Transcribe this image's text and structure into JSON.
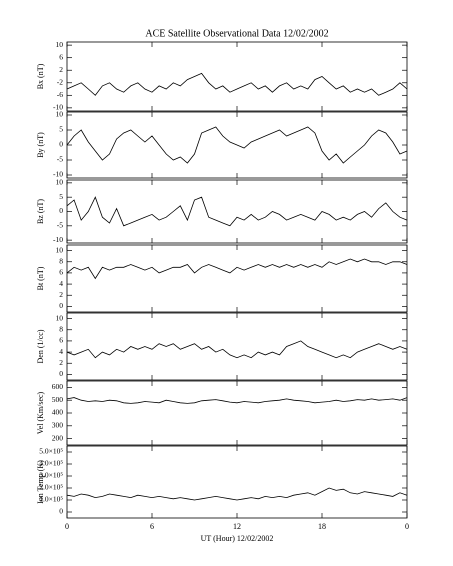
{
  "chart_data": [
    {
      "type": "line",
      "title": "ACE Satellite Observational Data   12/02/2002",
      "ylabel": "Bx (nT)",
      "xlim": [
        0,
        24
      ],
      "xticks": [
        0,
        6,
        12,
        18,
        24
      ],
      "ylim": [
        -11,
        11
      ],
      "yticks": [
        -10,
        -6,
        -2,
        2,
        6,
        10
      ],
      "color": "#000000",
      "x": [
        0,
        0.5,
        1,
        1.5,
        2,
        2.5,
        3,
        3.5,
        4,
        4.5,
        5,
        5.5,
        6,
        6.5,
        7,
        7.5,
        8,
        8.5,
        9,
        9.5,
        10,
        10.5,
        11,
        11.5,
        12,
        12.5,
        13,
        13.5,
        14,
        14.5,
        15,
        15.5,
        16,
        16.5,
        17,
        17.5,
        18,
        18.5,
        19,
        19.5,
        20,
        20.5,
        21,
        21.5,
        22,
        22.5,
        23,
        23.5,
        24
      ],
      "values": [
        -4,
        -3,
        -2,
        -4,
        -6,
        -3,
        -2,
        -4,
        -5,
        -3,
        -2,
        -4,
        -5,
        -3,
        -4,
        -2,
        -3,
        -1,
        0,
        1,
        -2,
        -4,
        -3,
        -5,
        -4,
        -3,
        -2,
        -4,
        -3,
        -5,
        -3,
        -2,
        -4,
        -3,
        -4,
        -1,
        0,
        -2,
        -4,
        -3,
        -5,
        -4,
        -5,
        -4,
        -6,
        -5,
        -4,
        -2,
        -4
      ]
    },
    {
      "type": "line",
      "ylabel": "By (nT)",
      "xlim": [
        0,
        24
      ],
      "xticks": [
        0,
        6,
        12,
        18,
        24
      ],
      "ylim": [
        -11,
        11
      ],
      "yticks": [
        -10,
        -5,
        0,
        5,
        10
      ],
      "color": "#000000",
      "x": [
        0,
        0.5,
        1,
        1.5,
        2,
        2.5,
        3,
        3.5,
        4,
        4.5,
        5,
        5.5,
        6,
        6.5,
        7,
        7.5,
        8,
        8.5,
        9,
        9.5,
        10,
        10.5,
        11,
        11.5,
        12,
        12.5,
        13,
        13.5,
        14,
        14.5,
        15,
        15.5,
        16,
        16.5,
        17,
        17.5,
        18,
        18.5,
        19,
        19.5,
        20,
        20.5,
        21,
        21.5,
        22,
        22.5,
        23,
        23.5,
        24
      ],
      "values": [
        0,
        3,
        5,
        1,
        -2,
        -5,
        -3,
        2,
        4,
        5,
        3,
        1,
        3,
        0,
        -3,
        -5,
        -4,
        -6,
        -3,
        4,
        5,
        6,
        3,
        1,
        0,
        -1,
        1,
        2,
        3,
        4,
        5,
        3,
        4,
        5,
        6,
        4,
        -2,
        -5,
        -3,
        -6,
        -4,
        -2,
        0,
        3,
        5,
        4,
        1,
        -3,
        -2
      ]
    },
    {
      "type": "line",
      "ylabel": "Bz (nT)",
      "xlim": [
        0,
        24
      ],
      "xticks": [
        0,
        6,
        12,
        18,
        24
      ],
      "ylim": [
        -11,
        11
      ],
      "yticks": [
        -10,
        -5,
        0,
        5,
        10
      ],
      "color": "#000000",
      "x": [
        0,
        0.5,
        1,
        1.5,
        2,
        2.5,
        3,
        3.5,
        4,
        4.5,
        5,
        5.5,
        6,
        6.5,
        7,
        7.5,
        8,
        8.5,
        9,
        9.5,
        10,
        10.5,
        11,
        11.5,
        12,
        12.5,
        13,
        13.5,
        14,
        14.5,
        15,
        15.5,
        16,
        16.5,
        17,
        17.5,
        18,
        18.5,
        19,
        19.5,
        20,
        20.5,
        21,
        21.5,
        22,
        22.5,
        23,
        23.5,
        24
      ],
      "values": [
        2,
        4,
        -3,
        0,
        5,
        -2,
        -4,
        1,
        -5,
        -4,
        -3,
        -2,
        -1,
        -3,
        -2,
        0,
        2,
        -3,
        4,
        5,
        -2,
        -3,
        -4,
        -5,
        -2,
        -3,
        -1,
        -3,
        -2,
        0,
        -1,
        -3,
        -2,
        -1,
        -2,
        -3,
        0,
        -1,
        -3,
        -2,
        -3,
        -1,
        0,
        -2,
        1,
        3,
        0,
        -2,
        -3
      ]
    },
    {
      "type": "line",
      "ylabel": "Bt (nT)",
      "xlim": [
        0,
        24
      ],
      "xticks": [
        0,
        6,
        12,
        18,
        24
      ],
      "ylim": [
        -1,
        11
      ],
      "yticks": [
        0,
        2,
        4,
        6,
        8,
        10
      ],
      "color": "#000000",
      "x": [
        0,
        0.5,
        1,
        1.5,
        2,
        2.5,
        3,
        3.5,
        4,
        4.5,
        5,
        5.5,
        6,
        6.5,
        7,
        7.5,
        8,
        8.5,
        9,
        9.5,
        10,
        10.5,
        11,
        11.5,
        12,
        12.5,
        13,
        13.5,
        14,
        14.5,
        15,
        15.5,
        16,
        16.5,
        17,
        17.5,
        18,
        18.5,
        19,
        19.5,
        20,
        20.5,
        21,
        21.5,
        22,
        22.5,
        23,
        23.5,
        24
      ],
      "values": [
        6,
        7,
        6.5,
        7,
        5,
        7,
        6.5,
        7,
        7,
        7.5,
        7,
        6.5,
        7,
        6,
        6.5,
        7,
        7,
        7.5,
        6,
        7,
        7.5,
        7,
        6.5,
        6,
        7,
        6.5,
        7,
        7.5,
        7,
        7.5,
        7,
        7.5,
        7,
        7.5,
        7,
        7.5,
        7,
        8,
        7.5,
        8,
        8.5,
        8,
        8.5,
        8,
        8,
        7.5,
        8,
        8,
        7.5
      ]
    },
    {
      "type": "line",
      "ylabel": "Den (1/cc)",
      "xlim": [
        0,
        24
      ],
      "xticks": [
        0,
        6,
        12,
        18,
        24
      ],
      "ylim": [
        -1,
        11
      ],
      "yticks": [
        0,
        2,
        4,
        6,
        8,
        10
      ],
      "color": "#000000",
      "x": [
        0,
        0.5,
        1,
        1.5,
        2,
        2.5,
        3,
        3.5,
        4,
        4.5,
        5,
        5.5,
        6,
        6.5,
        7,
        7.5,
        8,
        8.5,
        9,
        9.5,
        10,
        10.5,
        11,
        11.5,
        12,
        12.5,
        13,
        13.5,
        14,
        14.5,
        15,
        15.5,
        16,
        16.5,
        17,
        17.5,
        18,
        18.5,
        19,
        19.5,
        20,
        20.5,
        21,
        21.5,
        22,
        22.5,
        23,
        23.5,
        24
      ],
      "values": [
        4,
        3.5,
        4,
        4.5,
        3,
        4,
        3.5,
        4.5,
        4,
        5,
        4.5,
        5,
        4.5,
        5.5,
        5,
        5.5,
        4.5,
        5,
        5.5,
        4.5,
        5,
        4,
        4.5,
        3.5,
        3,
        3.5,
        3,
        4,
        3.5,
        4,
        3.5,
        5,
        5.5,
        6,
        5,
        4.5,
        4,
        3.5,
        3,
        3.5,
        3,
        4,
        4.5,
        5,
        5.5,
        5,
        4.5,
        5,
        4.5
      ]
    },
    {
      "type": "line",
      "ylabel": "Vel (Km/sec)",
      "xlim": [
        0,
        24
      ],
      "xticks": [
        0,
        6,
        12,
        18,
        24
      ],
      "ylim": [
        150,
        650
      ],
      "yticks": [
        200,
        300,
        400,
        500,
        600
      ],
      "color": "#000000",
      "x": [
        0,
        0.5,
        1,
        1.5,
        2,
        2.5,
        3,
        3.5,
        4,
        4.5,
        5,
        5.5,
        6,
        6.5,
        7,
        7.5,
        8,
        8.5,
        9,
        9.5,
        10,
        10.5,
        11,
        11.5,
        12,
        12.5,
        13,
        13.5,
        14,
        14.5,
        15,
        15.5,
        16,
        16.5,
        17,
        17.5,
        18,
        18.5,
        19,
        19.5,
        20,
        20.5,
        21,
        21.5,
        22,
        22.5,
        23,
        23.5,
        24
      ],
      "values": [
        510,
        520,
        500,
        490,
        495,
        490,
        500,
        495,
        480,
        475,
        480,
        490,
        485,
        480,
        500,
        490,
        480,
        475,
        480,
        495,
        500,
        505,
        495,
        485,
        480,
        490,
        485,
        480,
        490,
        495,
        500,
        510,
        500,
        495,
        490,
        480,
        485,
        490,
        500,
        490,
        495,
        505,
        500,
        510,
        500,
        505,
        510,
        500,
        520
      ]
    },
    {
      "type": "line",
      "ylabel": "Ion Temp (K)",
      "xlabel": "UT (Hour)  12/02/2002",
      "xlim": [
        0,
        24
      ],
      "xticks": [
        0,
        6,
        12,
        18,
        {
          "value": 24,
          "label": "0"
        }
      ],
      "ylim": [
        -50000,
        550000
      ],
      "yticks": [
        0,
        {
          "value": 100000,
          "label": "1.0×10⁵"
        },
        {
          "value": 200000,
          "label": "2.0×10⁵"
        },
        {
          "value": 300000,
          "label": "3.0×10⁵"
        },
        {
          "value": 400000,
          "label": "4.0×10⁵"
        },
        {
          "value": 500000,
          "label": "5.0×10⁵"
        }
      ],
      "color": "#000000",
      "x": [
        0,
        0.5,
        1,
        1.5,
        2,
        2.5,
        3,
        3.5,
        4,
        4.5,
        5,
        5.5,
        6,
        6.5,
        7,
        7.5,
        8,
        8.5,
        9,
        9.5,
        10,
        10.5,
        11,
        11.5,
        12,
        12.5,
        13,
        13.5,
        14,
        14.5,
        15,
        15.5,
        16,
        16.5,
        17,
        17.5,
        18,
        18.5,
        19,
        19.5,
        20,
        20.5,
        21,
        21.5,
        22,
        22.5,
        23,
        23.5,
        24
      ],
      "values": [
        140000,
        130000,
        150000,
        140000,
        120000,
        130000,
        150000,
        140000,
        130000,
        120000,
        140000,
        130000,
        120000,
        130000,
        120000,
        110000,
        120000,
        110000,
        100000,
        110000,
        120000,
        130000,
        120000,
        110000,
        100000,
        110000,
        120000,
        110000,
        130000,
        120000,
        130000,
        120000,
        140000,
        150000,
        160000,
        140000,
        170000,
        200000,
        180000,
        190000,
        160000,
        150000,
        170000,
        160000,
        150000,
        140000,
        130000,
        160000,
        140000
      ]
    }
  ]
}
